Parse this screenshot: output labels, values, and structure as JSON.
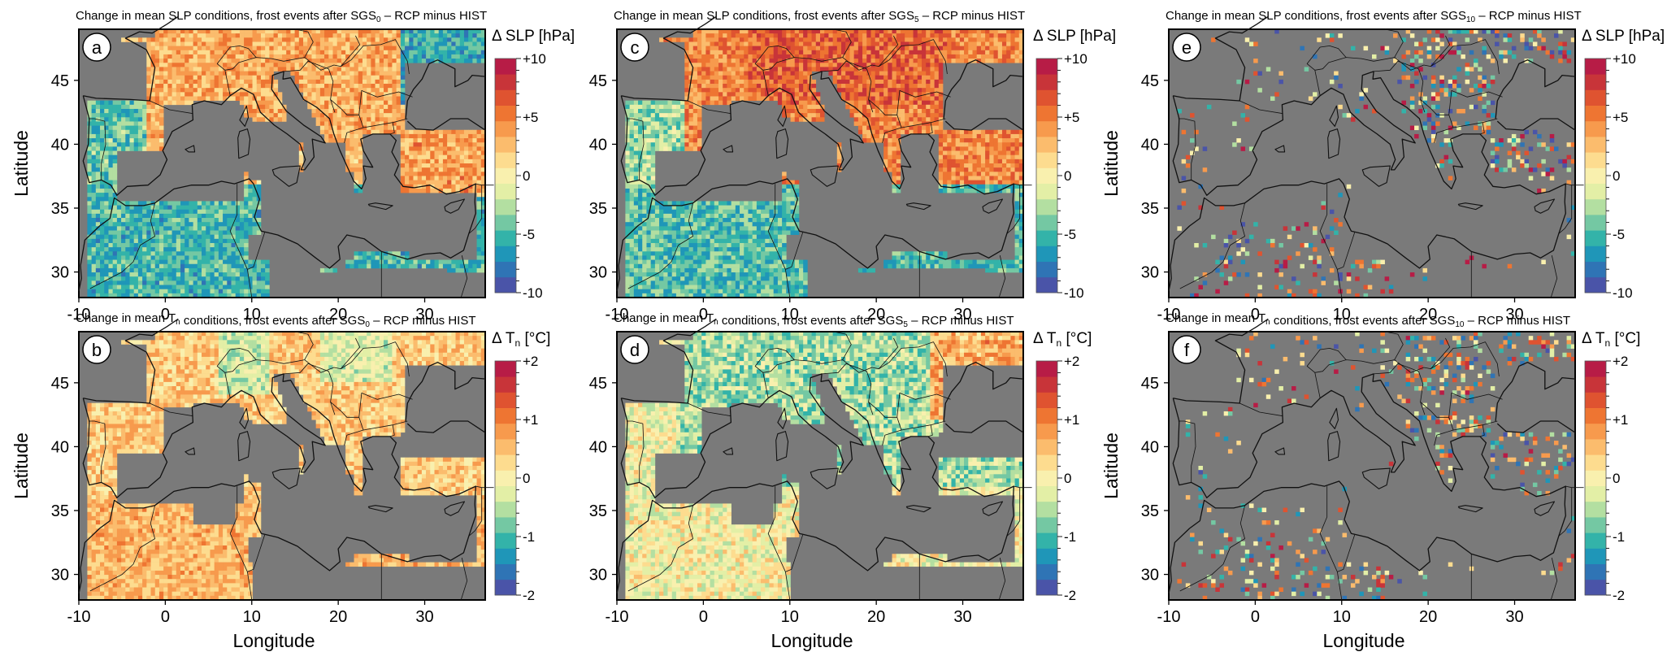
{
  "figure": {
    "rows": [
      {
        "variable": "SLP",
        "cbar_title": "Δ SLP [hPa]",
        "cbar_ticks": [
          "+10",
          "+5",
          "0",
          "-5",
          "-10"
        ],
        "range": [
          -10,
          10
        ]
      },
      {
        "variable": "Tn",
        "cbar_title_parts": [
          "Δ T",
          "n",
          " [°C]"
        ],
        "cbar_ticks": [
          "+2",
          "+1",
          "0",
          "-1",
          "-2"
        ],
        "range": [
          -2,
          2
        ]
      }
    ],
    "columns": [
      {
        "sgs_sub": "0"
      },
      {
        "sgs_sub": "5"
      },
      {
        "sgs_sub": "10"
      }
    ],
    "title_parts": {
      "prefix": "Change in mean ",
      "slp_var": "SLP",
      "tn_var": "T",
      "tn_sub": "n",
      "middle": " conditions, frost events after ",
      "sgs": "SGS",
      "suffix": " – RCP minus HIST"
    },
    "panel_labels": [
      "a",
      "c",
      "e",
      "b",
      "d",
      "f"
    ],
    "xlabel": "Longitude",
    "ylabel": "Latitude",
    "x_ticks": [
      "-10",
      "0",
      "10",
      "20",
      "30"
    ],
    "y_ticks": [
      "45",
      "40",
      "35",
      "30"
    ],
    "colorbar_colors": [
      "#4a54a8",
      "#2f74b5",
      "#1f96b8",
      "#33b3a9",
      "#74c8a3",
      "#b3dfa1",
      "#e3efa6",
      "#f9f0ae",
      "#fddc8f",
      "#fbbc6d",
      "#f79a4d",
      "#ee7532",
      "#df5330",
      "#c83439",
      "#b71c46"
    ],
    "land_mask_color": "#7a7a7a",
    "show_y_labels_on_panels": [
      "a",
      "b",
      "e",
      "f"
    ],
    "show_x_labels_on_panels": [
      "b",
      "d",
      "f",
      "e"
    ]
  },
  "chart_data": [
    {
      "panel": "a",
      "type": "heatmap",
      "title": "Change in mean SLP conditions, frost events after SGS0 – RCP minus HIST",
      "xlabel": "",
      "ylabel": "Latitude",
      "xlim": [
        -10,
        37
      ],
      "ylim": [
        28,
        49
      ],
      "colorbar": "Δ SLP [hPa]",
      "vlim": [
        -10,
        10
      ],
      "pattern": "positive (+2 to +6 hPa) over central/eastern Europe, Italy, Balkans, Turkey; negative (-3 to -7 hPa) over western Iberia, North Africa and Black Sea region"
    },
    {
      "panel": "c",
      "type": "heatmap",
      "title": "Change in mean SLP conditions, frost events after SGS5 – RCP minus HIST",
      "xlabel": "",
      "ylabel": "",
      "xlim": [
        -10,
        37
      ],
      "ylim": [
        28,
        49
      ],
      "colorbar": "Δ SLP [hPa]",
      "vlim": [
        -10,
        10
      ],
      "pattern": "strongly positive (+3 to +8 hPa) over Europe, Balkans and Turkey; negative over Iberia and North Africa"
    },
    {
      "panel": "e",
      "type": "heatmap",
      "title": "Change in mean SLP conditions, frost events after SGS10 – RCP minus HIST",
      "xlabel": "Longitude",
      "ylabel": "Latitude",
      "xlim": [
        -10,
        37
      ],
      "ylim": [
        28,
        49
      ],
      "colorbar": "Δ SLP [hPa]",
      "vlim": [
        -10,
        10
      ],
      "pattern": "sparse scattered cells, mixed sign, mostly over Balkans, Turkey, Iberia and North Africa"
    },
    {
      "panel": "b",
      "type": "heatmap",
      "title": "Change in mean Tn conditions, frost events after SGS0 – RCP minus HIST",
      "xlabel": "Longitude",
      "ylabel": "Latitude",
      "xlim": [
        -10,
        37
      ],
      "ylim": [
        28,
        49
      ],
      "colorbar": "Δ Tn [°C]",
      "vlim": [
        -2,
        2
      ],
      "pattern": "mostly weak positive (0 to +1 °C) warming; slight negative over Alps and Carpathians"
    },
    {
      "panel": "d",
      "type": "heatmap",
      "title": "Change in mean Tn conditions, frost events after SGS5 – RCP minus HIST",
      "xlabel": "Longitude",
      "ylabel": "",
      "xlim": [
        -10,
        37
      ],
      "ylim": [
        28,
        49
      ],
      "colorbar": "Δ Tn [°C]",
      "vlim": [
        -2,
        2
      ],
      "pattern": "mostly negative (-0.5 to -1.5 °C) over Europe and Balkans; mixed elsewhere"
    },
    {
      "panel": "f",
      "type": "heatmap",
      "title": "Change in mean Tn conditions, frost events after SGS10 – RCP minus HIST",
      "xlabel": "Longitude",
      "ylabel": "Latitude",
      "xlim": [
        -10,
        37
      ],
      "ylim": [
        28,
        49
      ],
      "colorbar": "Δ Tn [°C]",
      "vlim": [
        -2,
        2
      ],
      "pattern": "sparse scattered cells, mixed sign"
    }
  ]
}
